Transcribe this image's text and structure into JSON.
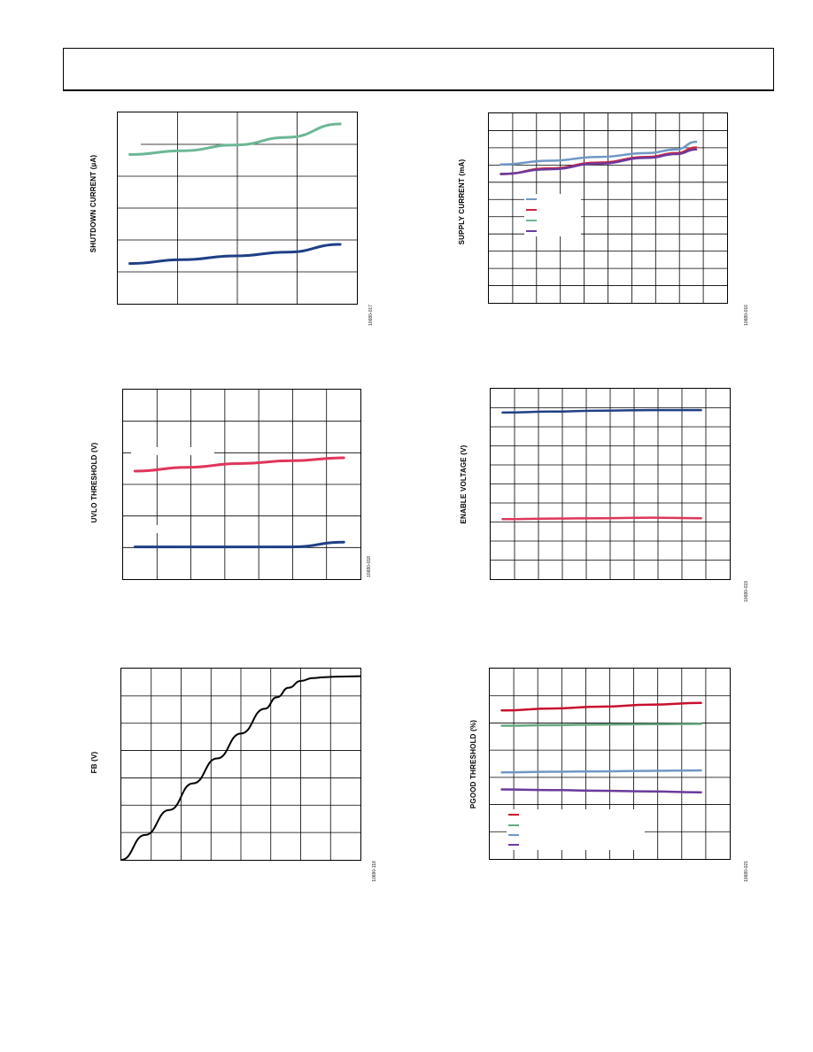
{
  "colors": {
    "teal": "#6bb794",
    "navy": "#1f3f86",
    "steel": "#7097c4",
    "crimson": "#d0243f",
    "pink": "#e0365a",
    "purple": "#6a3a9c",
    "red": "#c8102e",
    "green": "#66a77f",
    "black": "#000000",
    "grid": "#000000"
  },
  "charts": [
    {
      "id": "shutdown",
      "ylabel": "SHUTDOWN CURRENT (µA)",
      "figcode": "10680-017",
      "chart_data": {
        "type": "line",
        "grid": true,
        "x": [
          0,
          0.25,
          0.5,
          0.75,
          1.0
        ],
        "series": [
          {
            "color_key": "teal",
            "values": [
              0.78,
              0.8,
              0.83,
              0.87,
              0.94
            ]
          },
          {
            "color_key": "navy",
            "values": [
              0.21,
              0.23,
              0.25,
              0.27,
              0.31
            ]
          }
        ]
      }
    },
    {
      "id": "supply",
      "ylabel": "SUPPLY CURRENT (mA)",
      "figcode": "10680-016",
      "chart_data": {
        "type": "line",
        "grid": true,
        "x": [
          0,
          0.25,
          0.5,
          0.75,
          0.9,
          1.0
        ],
        "series": [
          {
            "color_key": "steel",
            "values": [
              0.73,
              0.75,
              0.77,
              0.79,
              0.81,
              0.85
            ]
          },
          {
            "color_key": "crimson",
            "values": [
              0.68,
              0.71,
              0.74,
              0.77,
              0.79,
              0.82
            ]
          },
          {
            "color_key": "purple",
            "values": [
              0.68,
              0.705,
              0.735,
              0.765,
              0.785,
              0.81
            ]
          }
        ]
      }
    },
    {
      "id": "uvlo",
      "ylabel": "UVLO THRESHOLD (V)",
      "figcode": "10680-018",
      "chart_data": {
        "type": "line",
        "grid": true,
        "x": [
          0,
          0.25,
          0.5,
          0.75,
          1.0
        ],
        "series": [
          {
            "color_key": "pink",
            "values": [
              0.57,
              0.59,
              0.61,
              0.625,
              0.64
            ]
          },
          {
            "color_key": "navy",
            "values": [
              0.17,
              0.17,
              0.17,
              0.17,
              0.195
            ]
          }
        ]
      }
    },
    {
      "id": "enable",
      "ylabel": "ENABLE VOLTAGE (V)",
      "figcode": "10680-019",
      "chart_data": {
        "type": "line",
        "grid": true,
        "x": [
          0,
          0.25,
          0.5,
          0.75,
          1.0
        ],
        "series": [
          {
            "color_key": "navy",
            "values": [
              0.875,
              0.88,
              0.885,
              0.888,
              0.888
            ]
          },
          {
            "color_key": "pink",
            "values": [
              0.315,
              0.318,
              0.32,
              0.323,
              0.32
            ]
          }
        ]
      }
    },
    {
      "id": "fb",
      "ylabel": "FB (V)",
      "figcode": "10680-118",
      "chart_data": {
        "type": "line",
        "grid": true,
        "x": [
          0,
          0.1,
          0.2,
          0.3,
          0.4,
          0.5,
          0.6,
          0.65,
          0.7,
          0.75,
          0.8,
          0.85,
          0.9,
          1.0
        ],
        "series": [
          {
            "color_key": "black",
            "values": [
              0,
              0.13,
              0.26,
              0.4,
              0.53,
              0.66,
              0.79,
              0.85,
              0.9,
              0.935,
              0.95,
              0.955,
              0.958,
              0.96
            ]
          }
        ]
      }
    },
    {
      "id": "pgood",
      "ylabel": "PGOOD THRESHOLD (%)",
      "figcode": "10680-021",
      "chart_data": {
        "type": "line",
        "grid": true,
        "x": [
          0,
          0.25,
          0.5,
          0.75,
          1.0
        ],
        "series": [
          {
            "color_key": "red",
            "values": [
              0.78,
              0.79,
              0.8,
              0.81,
              0.82
            ]
          },
          {
            "color_key": "green",
            "values": [
              0.7,
              0.703,
              0.706,
              0.708,
              0.71
            ]
          },
          {
            "color_key": "steel",
            "values": [
              0.455,
              0.458,
              0.46,
              0.463,
              0.465
            ]
          },
          {
            "color_key": "purple",
            "values": [
              0.365,
              0.362,
              0.358,
              0.355,
              0.35
            ]
          }
        ]
      }
    }
  ]
}
